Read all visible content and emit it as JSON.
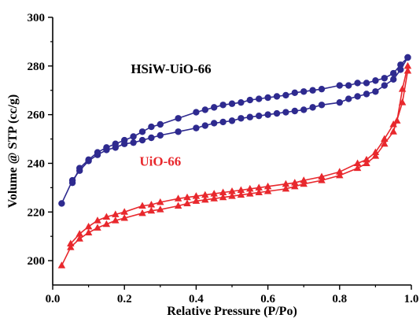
{
  "chart_data": {
    "type": "line",
    "xlabel": "Relative Pressure (P/Po)",
    "ylabel": "Volume @ STP (cc/g)",
    "xlim": [
      0.0,
      1.0
    ],
    "ylim": [
      190,
      300
    ],
    "x_ticks": [
      0.0,
      0.2,
      0.4,
      0.6,
      0.8,
      1.0
    ],
    "x_tick_labels": [
      "0.0",
      "0.2",
      "0.4",
      "0.6",
      "0.8",
      "1.0"
    ],
    "y_ticks": [
      200,
      220,
      240,
      260,
      280,
      300
    ],
    "y_tick_labels": [
      "200",
      "220",
      "240",
      "260",
      "280",
      "300"
    ],
    "grid": false,
    "series": [
      {
        "name": "HSiW-UiO-66",
        "color": "#2e2a8f",
        "marker": "circle",
        "adsorption": {
          "x": [
            0.025,
            0.055,
            0.075,
            0.1,
            0.125,
            0.15,
            0.175,
            0.2,
            0.225,
            0.25,
            0.275,
            0.3,
            0.35,
            0.4,
            0.425,
            0.45,
            0.475,
            0.5,
            0.525,
            0.55,
            0.575,
            0.6,
            0.625,
            0.65,
            0.675,
            0.7,
            0.725,
            0.75,
            0.8,
            0.825,
            0.85,
            0.875,
            0.9,
            0.925,
            0.95,
            0.97,
            0.99
          ],
          "y": [
            223.5,
            233,
            237,
            241,
            243.5,
            245.5,
            246.5,
            248,
            248.5,
            249.5,
            250.5,
            251.5,
            253,
            254.5,
            255.5,
            256.5,
            257,
            257.5,
            258.5,
            259,
            259.5,
            260,
            260.5,
            261,
            261.5,
            262,
            263,
            264,
            265,
            266.5,
            267.5,
            268.5,
            269.5,
            272,
            274.5,
            278.5,
            283.5
          ]
        },
        "desorption": {
          "x": [
            0.99,
            0.97,
            0.95,
            0.925,
            0.9,
            0.875,
            0.85,
            0.825,
            0.8,
            0.75,
            0.725,
            0.7,
            0.675,
            0.65,
            0.625,
            0.6,
            0.575,
            0.55,
            0.525,
            0.5,
            0.475,
            0.45,
            0.425,
            0.4,
            0.35,
            0.3,
            0.275,
            0.25,
            0.225,
            0.2,
            0.175,
            0.15,
            0.125,
            0.1,
            0.075,
            0.055
          ],
          "y": [
            283.5,
            280.5,
            277,
            275,
            274,
            273,
            273,
            272,
            272,
            270.5,
            270,
            269.5,
            269,
            268,
            267.5,
            267,
            266.5,
            266,
            265,
            264.5,
            264,
            263,
            262,
            261,
            258.5,
            256,
            255,
            253,
            251,
            249.5,
            248,
            246.5,
            244.5,
            241.5,
            238,
            232
          ]
        }
      },
      {
        "name": "UiO-66",
        "color": "#e8282d",
        "marker": "triangle",
        "adsorption": {
          "x": [
            0.025,
            0.05,
            0.075,
            0.1,
            0.125,
            0.15,
            0.175,
            0.2,
            0.25,
            0.275,
            0.3,
            0.35,
            0.375,
            0.4,
            0.425,
            0.45,
            0.475,
            0.5,
            0.525,
            0.55,
            0.575,
            0.6,
            0.65,
            0.675,
            0.7,
            0.75,
            0.8,
            0.85,
            0.875,
            0.9,
            0.925,
            0.95,
            0.975,
            0.99
          ],
          "y": [
            198,
            205.5,
            209,
            211.5,
            213.5,
            215,
            216.5,
            217.5,
            219.5,
            220.5,
            221,
            222.5,
            223.5,
            224.5,
            225,
            225.5,
            226,
            226.5,
            227,
            227.5,
            228,
            228.5,
            229.5,
            230.5,
            231.5,
            233,
            235,
            238,
            240,
            243,
            248,
            253,
            265,
            278
          ]
        },
        "desorption": {
          "x": [
            0.99,
            0.975,
            0.96,
            0.95,
            0.925,
            0.9,
            0.875,
            0.85,
            0.8,
            0.75,
            0.7,
            0.675,
            0.65,
            0.6,
            0.575,
            0.55,
            0.525,
            0.5,
            0.475,
            0.45,
            0.425,
            0.4,
            0.375,
            0.35,
            0.3,
            0.275,
            0.25,
            0.2,
            0.175,
            0.15,
            0.125,
            0.1,
            0.075,
            0.05
          ],
          "y": [
            280,
            270.5,
            257.5,
            256,
            250,
            244.5,
            241.5,
            240,
            236.5,
            234.5,
            233,
            232,
            231.5,
            230.5,
            230,
            229.5,
            229,
            228.5,
            228,
            227.5,
            227,
            226.5,
            226,
            225.5,
            224,
            223,
            222.5,
            220,
            219,
            218,
            216.5,
            214,
            211,
            207
          ]
        }
      }
    ],
    "labels": [
      {
        "text": "HSiW-UiO-66",
        "x": 0.33,
        "y": 277,
        "color": "#000000"
      },
      {
        "text": "UiO-66",
        "x": 0.3,
        "y": 239,
        "color": "#e8282d"
      }
    ]
  }
}
